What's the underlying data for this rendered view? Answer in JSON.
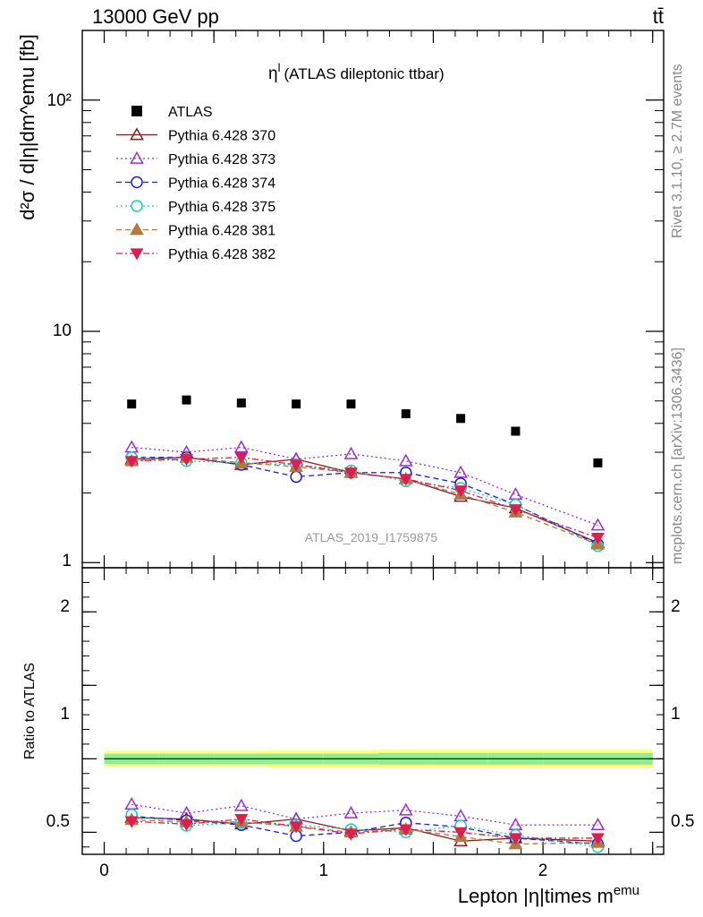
{
  "header": {
    "collision": "13000 GeV pp",
    "process": "tt̄"
  },
  "side": {
    "rivet": "Rivet 3.1.10, ≥ 2.7M events",
    "mcplots": "mcplots.cern.ch [arXiv:1306.3436]"
  },
  "chart_data": [
    {
      "type": "scatter",
      "title": "η^l (ATLAS dileptonic ttbar)",
      "title_main": "η",
      "title_sup": "l",
      "title_rest": "(ATLAS dileptonic ttbar)",
      "ylabel": "d²σ / d|η|dm^emu [fb]",
      "watermark": "ATLAS_2019_I1759875",
      "yscale": "log",
      "xlim": [
        -0.1,
        2.55
      ],
      "ylim": [
        0.95,
        200
      ],
      "ytick_labels": [
        "1",
        "10",
        "10²"
      ],
      "legend_position": "top-left",
      "x": [
        0.125,
        0.375,
        0.625,
        0.875,
        1.125,
        1.375,
        1.625,
        1.875,
        2.25
      ],
      "series": [
        {
          "name": "ATLAS",
          "color": "#000000",
          "marker": "square-filled",
          "line": "none",
          "values": [
            4.85,
            5.05,
            4.9,
            4.85,
            4.85,
            4.4,
            4.2,
            3.7,
            2.7
          ]
        },
        {
          "name": "Pythia 6.428 370",
          "color": "#8b1a1a",
          "marker": "triangle-open",
          "line": "solid",
          "values": [
            2.8,
            2.85,
            2.65,
            2.8,
            2.45,
            2.3,
            1.93,
            1.72,
            1.22
          ]
        },
        {
          "name": "Pythia 6.428 373",
          "color": "#9b30d0",
          "marker": "triangle-open",
          "line": "dotted",
          "values": [
            3.15,
            3.0,
            3.15,
            2.8,
            2.95,
            2.75,
            2.45,
            1.97,
            1.45
          ]
        },
        {
          "name": "Pythia 6.428 374",
          "color": "#1c1cd6",
          "marker": "circle-open",
          "line": "dashed",
          "values": [
            2.85,
            2.85,
            2.65,
            2.35,
            2.45,
            2.45,
            2.2,
            1.78,
            1.2
          ]
        },
        {
          "name": "Pythia 6.428 375",
          "color": "#16cfc0",
          "marker": "circle-open",
          "line": "dotted",
          "values": [
            2.85,
            2.75,
            2.7,
            2.65,
            2.5,
            2.25,
            2.1,
            1.78,
            1.18
          ]
        },
        {
          "name": "Pythia 6.428 381",
          "color": "#b07a40",
          "marker": "triangle-filled",
          "line": "dashed",
          "values": [
            2.75,
            2.85,
            2.7,
            2.6,
            2.45,
            2.3,
            1.97,
            1.65,
            1.2
          ]
        },
        {
          "name": "Pythia 6.428 382",
          "color": "#dc1e50",
          "marker": "triangle-down-filled",
          "line": "dashdot",
          "values": [
            2.75,
            2.8,
            2.85,
            2.65,
            2.45,
            2.3,
            2.05,
            1.7,
            1.28
          ]
        }
      ]
    },
    {
      "type": "scatter",
      "ylabel": "Ratio to ATLAS",
      "xlabel": "Lepton |η|times m^emu",
      "xlabel_main": "Lepton |η|times m",
      "xlabel_sup": "emu",
      "xlim": [
        -0.1,
        2.55
      ],
      "ylim": [
        0.35,
        2.3
      ],
      "ytick_labels": [
        "0.5",
        "1",
        "2"
      ],
      "xtick_labels": [
        "0",
        "1",
        "2"
      ],
      "reference_line": 1.0,
      "band_inner_color": "#90ee90",
      "band_outer_color": "#ffff80",
      "band": {
        "edges": [
          0.0,
          0.25,
          0.5,
          0.75,
          1.0,
          1.25,
          1.5,
          1.75,
          2.0,
          2.5
        ],
        "inner": [
          0.035,
          0.035,
          0.035,
          0.035,
          0.035,
          0.04,
          0.04,
          0.04,
          0.04
        ],
        "outer": [
          0.055,
          0.055,
          0.055,
          0.06,
          0.06,
          0.065,
          0.065,
          0.065,
          0.065
        ]
      },
      "x": [
        0.125,
        0.375,
        0.625,
        0.875,
        1.125,
        1.375,
        1.625,
        1.875,
        2.25
      ],
      "series": [
        {
          "name": "Pythia 6.428 370",
          "values": [
            0.6,
            0.59,
            0.555,
            0.59,
            0.51,
            0.53,
            0.44,
            0.46,
            0.44
          ]
        },
        {
          "name": "Pythia 6.428 373",
          "values": [
            0.69,
            0.63,
            0.68,
            0.59,
            0.63,
            0.65,
            0.61,
            0.55,
            0.55
          ]
        },
        {
          "name": "Pythia 6.428 374",
          "values": [
            0.61,
            0.58,
            0.55,
            0.475,
            0.5,
            0.565,
            0.535,
            0.46,
            0.42
          ]
        },
        {
          "name": "Pythia 6.428 375",
          "values": [
            0.62,
            0.545,
            0.565,
            0.55,
            0.52,
            0.5,
            0.545,
            0.48,
            0.4
          ]
        },
        {
          "name": "Pythia 6.428 381",
          "values": [
            0.585,
            0.57,
            0.57,
            0.54,
            0.5,
            0.52,
            0.47,
            0.42,
            0.43
          ]
        },
        {
          "name": "Pythia 6.428 382",
          "values": [
            0.575,
            0.555,
            0.59,
            0.54,
            0.49,
            0.52,
            0.5,
            0.46,
            0.46
          ]
        }
      ]
    }
  ]
}
